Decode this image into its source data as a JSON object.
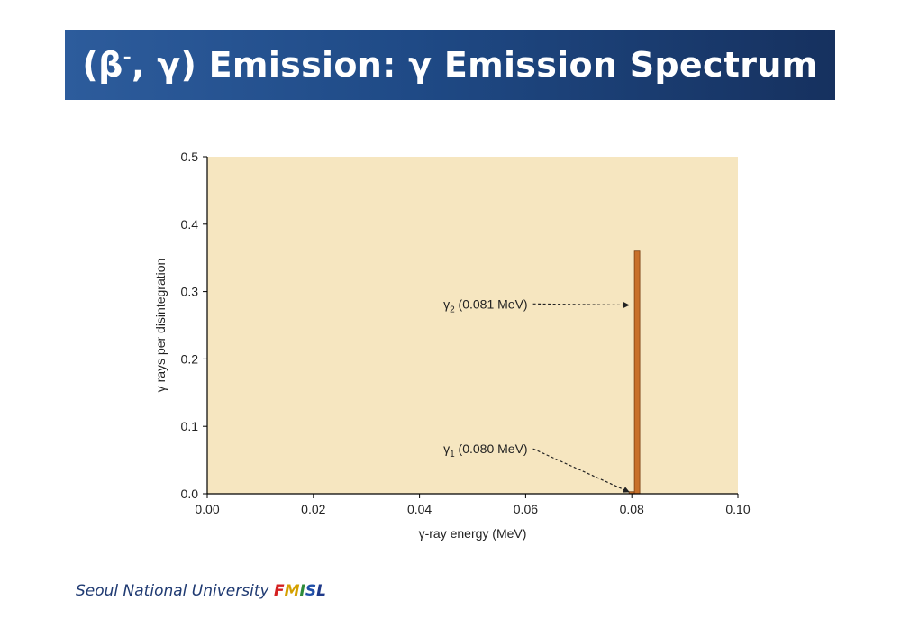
{
  "slide": {
    "title_prefix": "(β",
    "title_sup": "-",
    "title_suffix": ", γ) Emission: γ Emission Spectrum",
    "footer_text": "Seoul National University ",
    "footer_logo": [
      {
        "text": "F",
        "color": "#d42020"
      },
      {
        "text": "M",
        "color": "#d4a000"
      },
      {
        "text": "I",
        "color": "#2e8b3a"
      },
      {
        "text": "S",
        "color": "#1f4fa8"
      },
      {
        "text": "L",
        "color": "#1f3a8a"
      }
    ]
  },
  "chart_data": {
    "type": "bar",
    "xlabel": "γ-ray energy (MeV)",
    "ylabel": "γ rays per disintegration",
    "xlim": [
      0.0,
      0.1
    ],
    "ylim": [
      0.0,
      0.5
    ],
    "xticks": [
      "0.00",
      "0.02",
      "0.04",
      "0.06",
      "0.08",
      "0.10"
    ],
    "yticks": [
      "0.0",
      "0.1",
      "0.2",
      "0.3",
      "0.4",
      "0.5"
    ],
    "grid": false,
    "plot_background": "#f6e6c0",
    "bar_color": "#c8702a",
    "bars": [
      {
        "x": 0.08,
        "y": 0.003
      },
      {
        "x": 0.081,
        "y": 0.36
      }
    ],
    "annotations": [
      {
        "symbol": "γ",
        "sub": "1",
        "text": " (0.080 MeV)",
        "x": 0.08,
        "y": 0.0,
        "text_x": 0.0445,
        "text_y": 0.06
      },
      {
        "symbol": "γ",
        "sub": "2",
        "text": " (0.081 MeV)",
        "x": 0.081,
        "y": 0.28,
        "text_x": 0.0445,
        "text_y": 0.275
      }
    ]
  }
}
